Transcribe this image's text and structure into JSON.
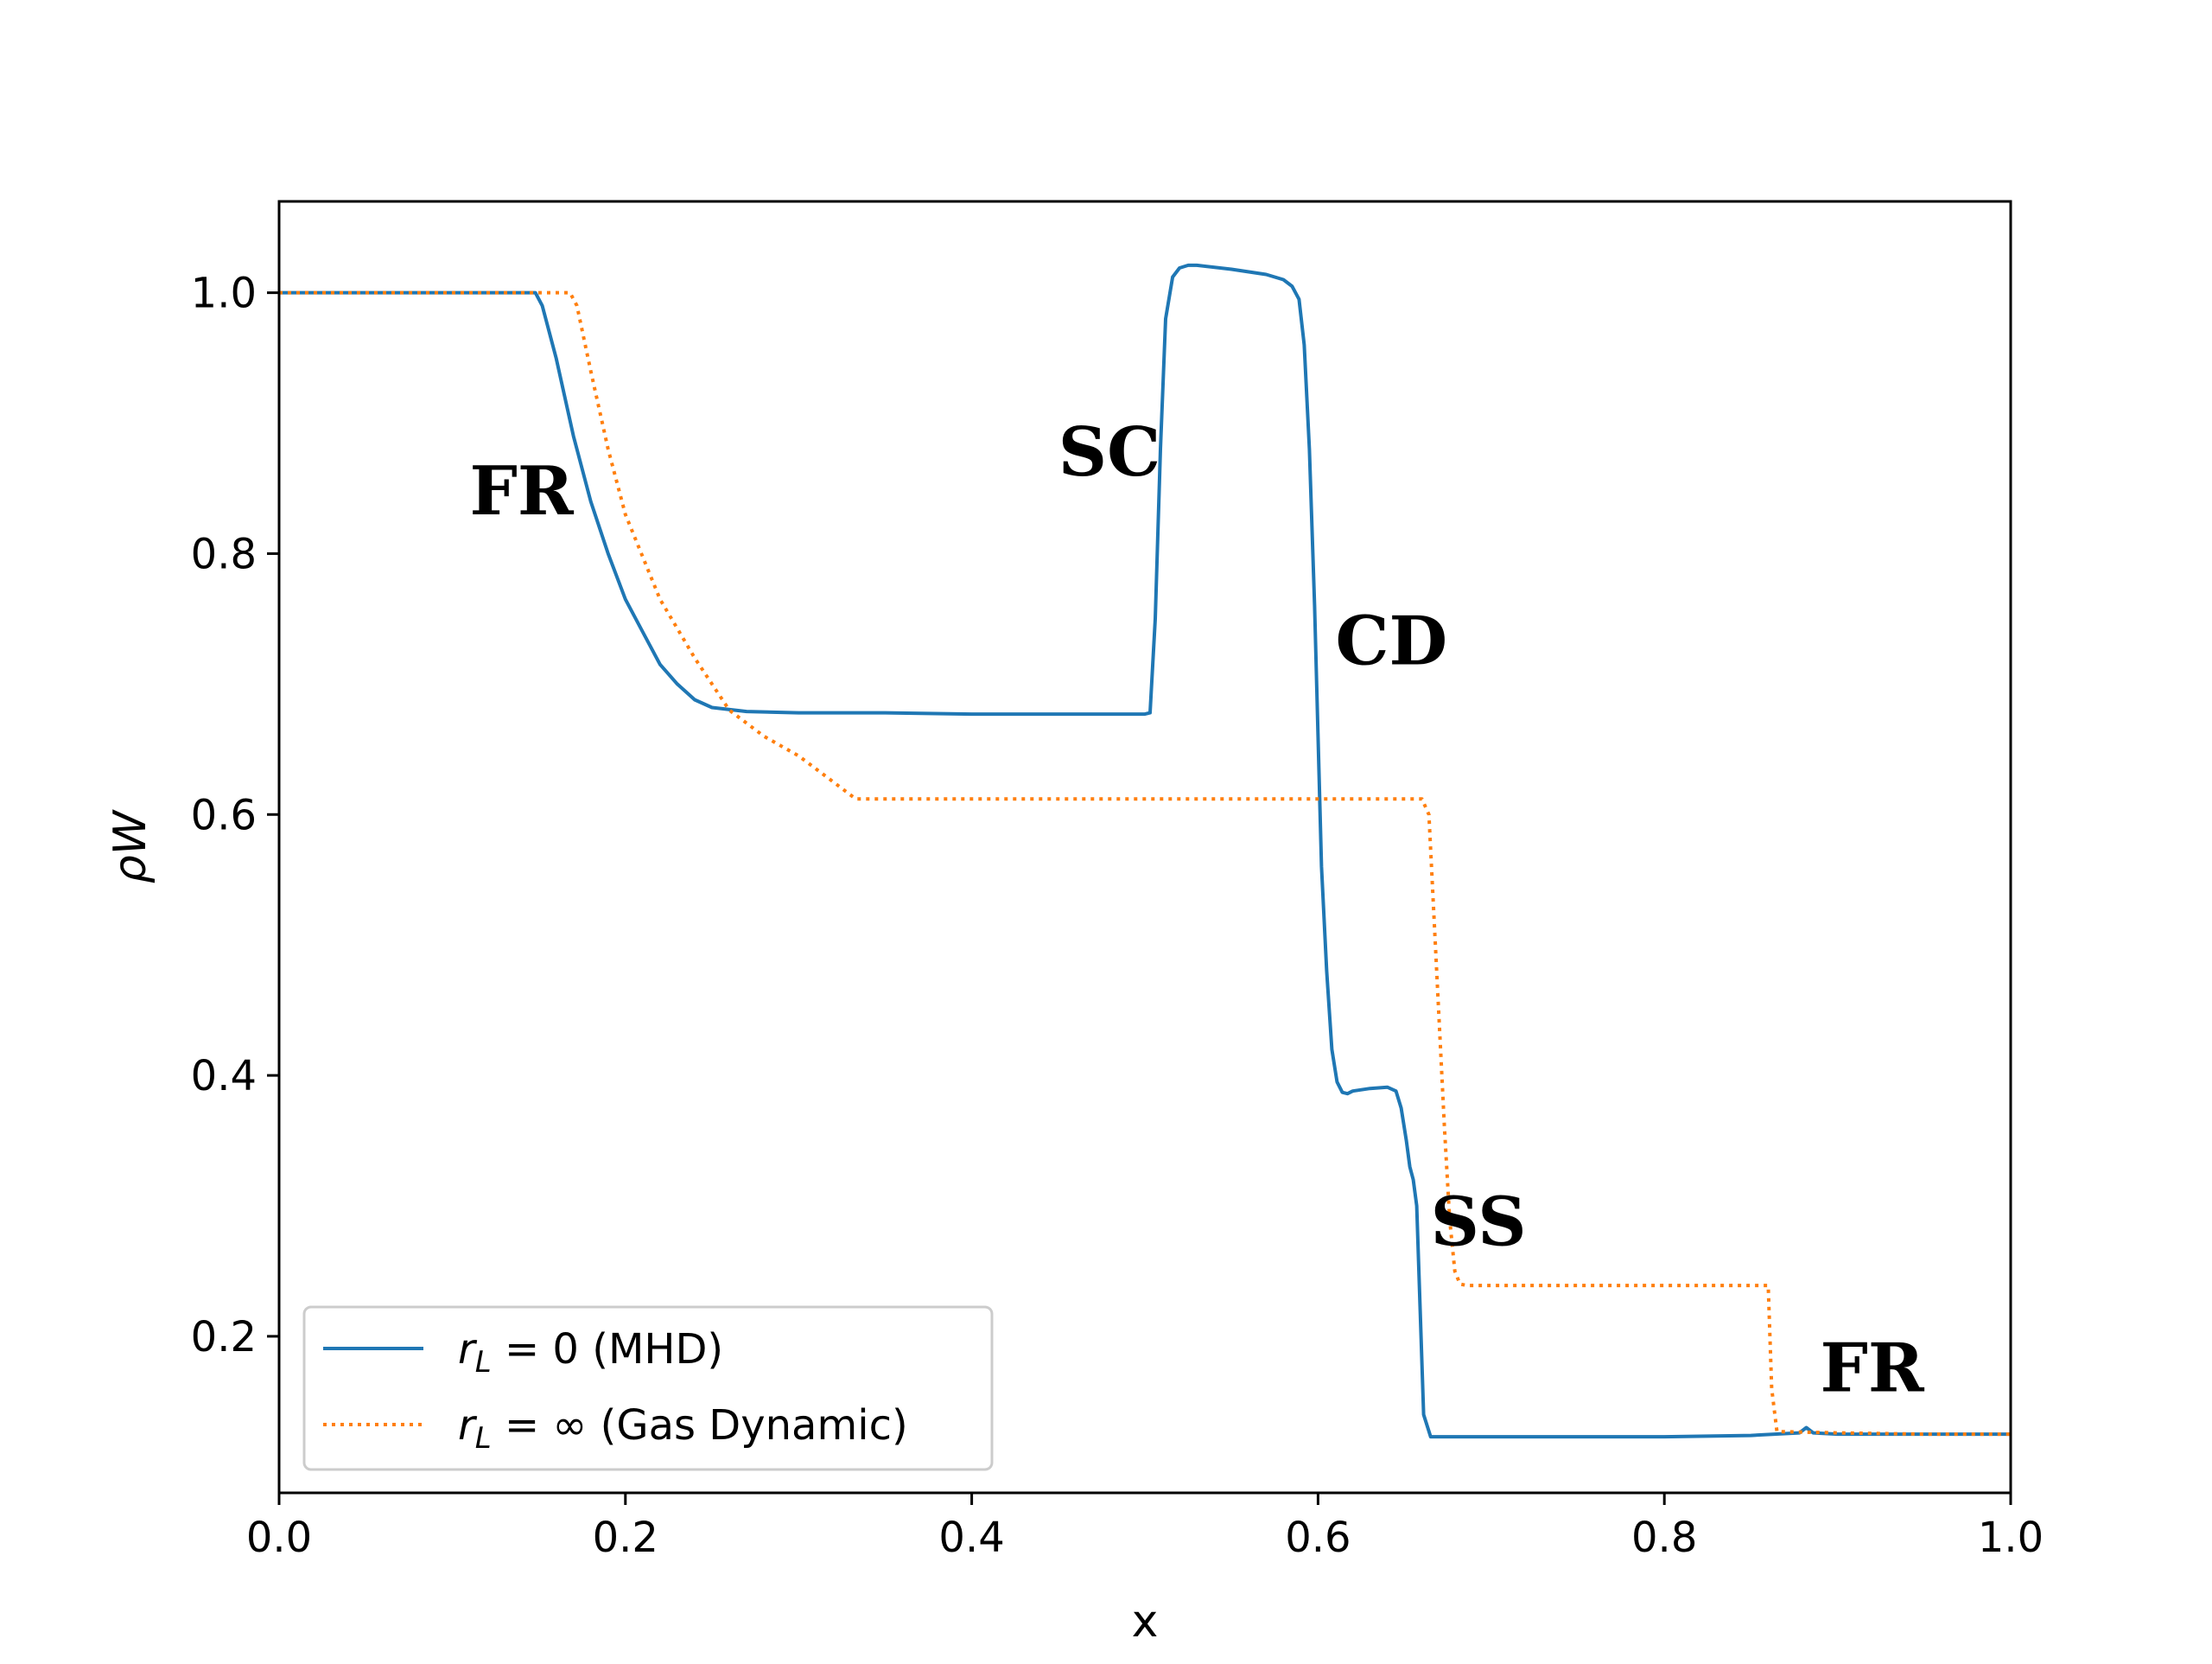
{
  "chart_data": {
    "type": "line",
    "title": "",
    "xlabel": "x",
    "ylabel": "ρW",
    "xlim": [
      0.0,
      1.0
    ],
    "ylim": [
      0.08,
      1.07
    ],
    "xticks": [
      "0.0",
      "0.2",
      "0.4",
      "0.6",
      "0.8",
      "1.0"
    ],
    "yticks": [
      "0.2",
      "0.4",
      "0.6",
      "0.8",
      "1.0"
    ],
    "grid": false,
    "legend_position": "lower-left",
    "series": [
      {
        "name": "r_L = 0 (MHD)",
        "legend": {
          "main": "r",
          "sub": "L",
          "rest": " = 0 (MHD)"
        },
        "color": "#1f77b4",
        "style": "solid",
        "x": [
          0.0,
          0.148,
          0.152,
          0.16,
          0.17,
          0.18,
          0.19,
          0.2,
          0.21,
          0.22,
          0.23,
          0.24,
          0.25,
          0.27,
          0.3,
          0.35,
          0.4,
          0.45,
          0.5,
          0.503,
          0.506,
          0.509,
          0.512,
          0.516,
          0.52,
          0.525,
          0.53,
          0.55,
          0.57,
          0.58,
          0.585,
          0.589,
          0.592,
          0.595,
          0.598,
          0.6,
          0.602,
          0.605,
          0.608,
          0.611,
          0.614,
          0.617,
          0.62,
          0.63,
          0.64,
          0.645,
          0.648,
          0.651,
          0.653,
          0.655,
          0.657,
          0.659,
          0.661,
          0.665,
          0.7,
          0.75,
          0.8,
          0.85,
          0.878,
          0.882,
          0.886,
          0.9,
          0.95,
          1.0
        ],
        "y": [
          1.0,
          1.0,
          0.99,
          0.95,
          0.89,
          0.84,
          0.8,
          0.765,
          0.74,
          0.715,
          0.7,
          0.688,
          0.682,
          0.679,
          0.678,
          0.678,
          0.677,
          0.677,
          0.677,
          0.678,
          0.75,
          0.88,
          0.98,
          1.012,
          1.019,
          1.021,
          1.021,
          1.018,
          1.014,
          1.01,
          1.005,
          0.995,
          0.96,
          0.88,
          0.76,
          0.66,
          0.56,
          0.48,
          0.42,
          0.395,
          0.387,
          0.386,
          0.388,
          0.39,
          0.391,
          0.388,
          0.375,
          0.35,
          0.33,
          0.32,
          0.3,
          0.22,
          0.14,
          0.123,
          0.123,
          0.123,
          0.123,
          0.124,
          0.126,
          0.13,
          0.126,
          0.125,
          0.125,
          0.125
        ]
      },
      {
        "name": "r_L = ∞ (Gas Dynamic)",
        "legend": {
          "main": "r",
          "sub": "L",
          "rest": " = ∞ (Gas Dynamic)"
        },
        "color": "#ff7f0e",
        "style": "dotted",
        "x": [
          0.0,
          0.168,
          0.172,
          0.18,
          0.19,
          0.2,
          0.22,
          0.24,
          0.26,
          0.28,
          0.3,
          0.32,
          0.333,
          0.34,
          0.4,
          0.5,
          0.6,
          0.66,
          0.664,
          0.667,
          0.67,
          0.673,
          0.676,
          0.679,
          0.682,
          0.686,
          0.69,
          0.75,
          0.8,
          0.86,
          0.862,
          0.865,
          0.9,
          0.95,
          1.0
        ],
        "y": [
          1.0,
          1.0,
          0.99,
          0.94,
          0.88,
          0.83,
          0.765,
          0.72,
          0.68,
          0.66,
          0.645,
          0.625,
          0.612,
          0.612,
          0.612,
          0.612,
          0.612,
          0.612,
          0.6,
          0.52,
          0.44,
          0.36,
          0.29,
          0.25,
          0.24,
          0.239,
          0.239,
          0.239,
          0.239,
          0.239,
          0.16,
          0.127,
          0.126,
          0.125,
          0.125
        ]
      }
    ],
    "annotations": [
      {
        "text": "FR",
        "x": 0.11,
        "y": 0.83
      },
      {
        "text": "SC",
        "x": 0.45,
        "y": 0.86
      },
      {
        "text": "CD",
        "x": 0.61,
        "y": 0.715
      },
      {
        "text": "SS",
        "x": 0.665,
        "y": 0.27
      },
      {
        "text": "FR",
        "x": 0.89,
        "y": 0.158
      }
    ]
  }
}
